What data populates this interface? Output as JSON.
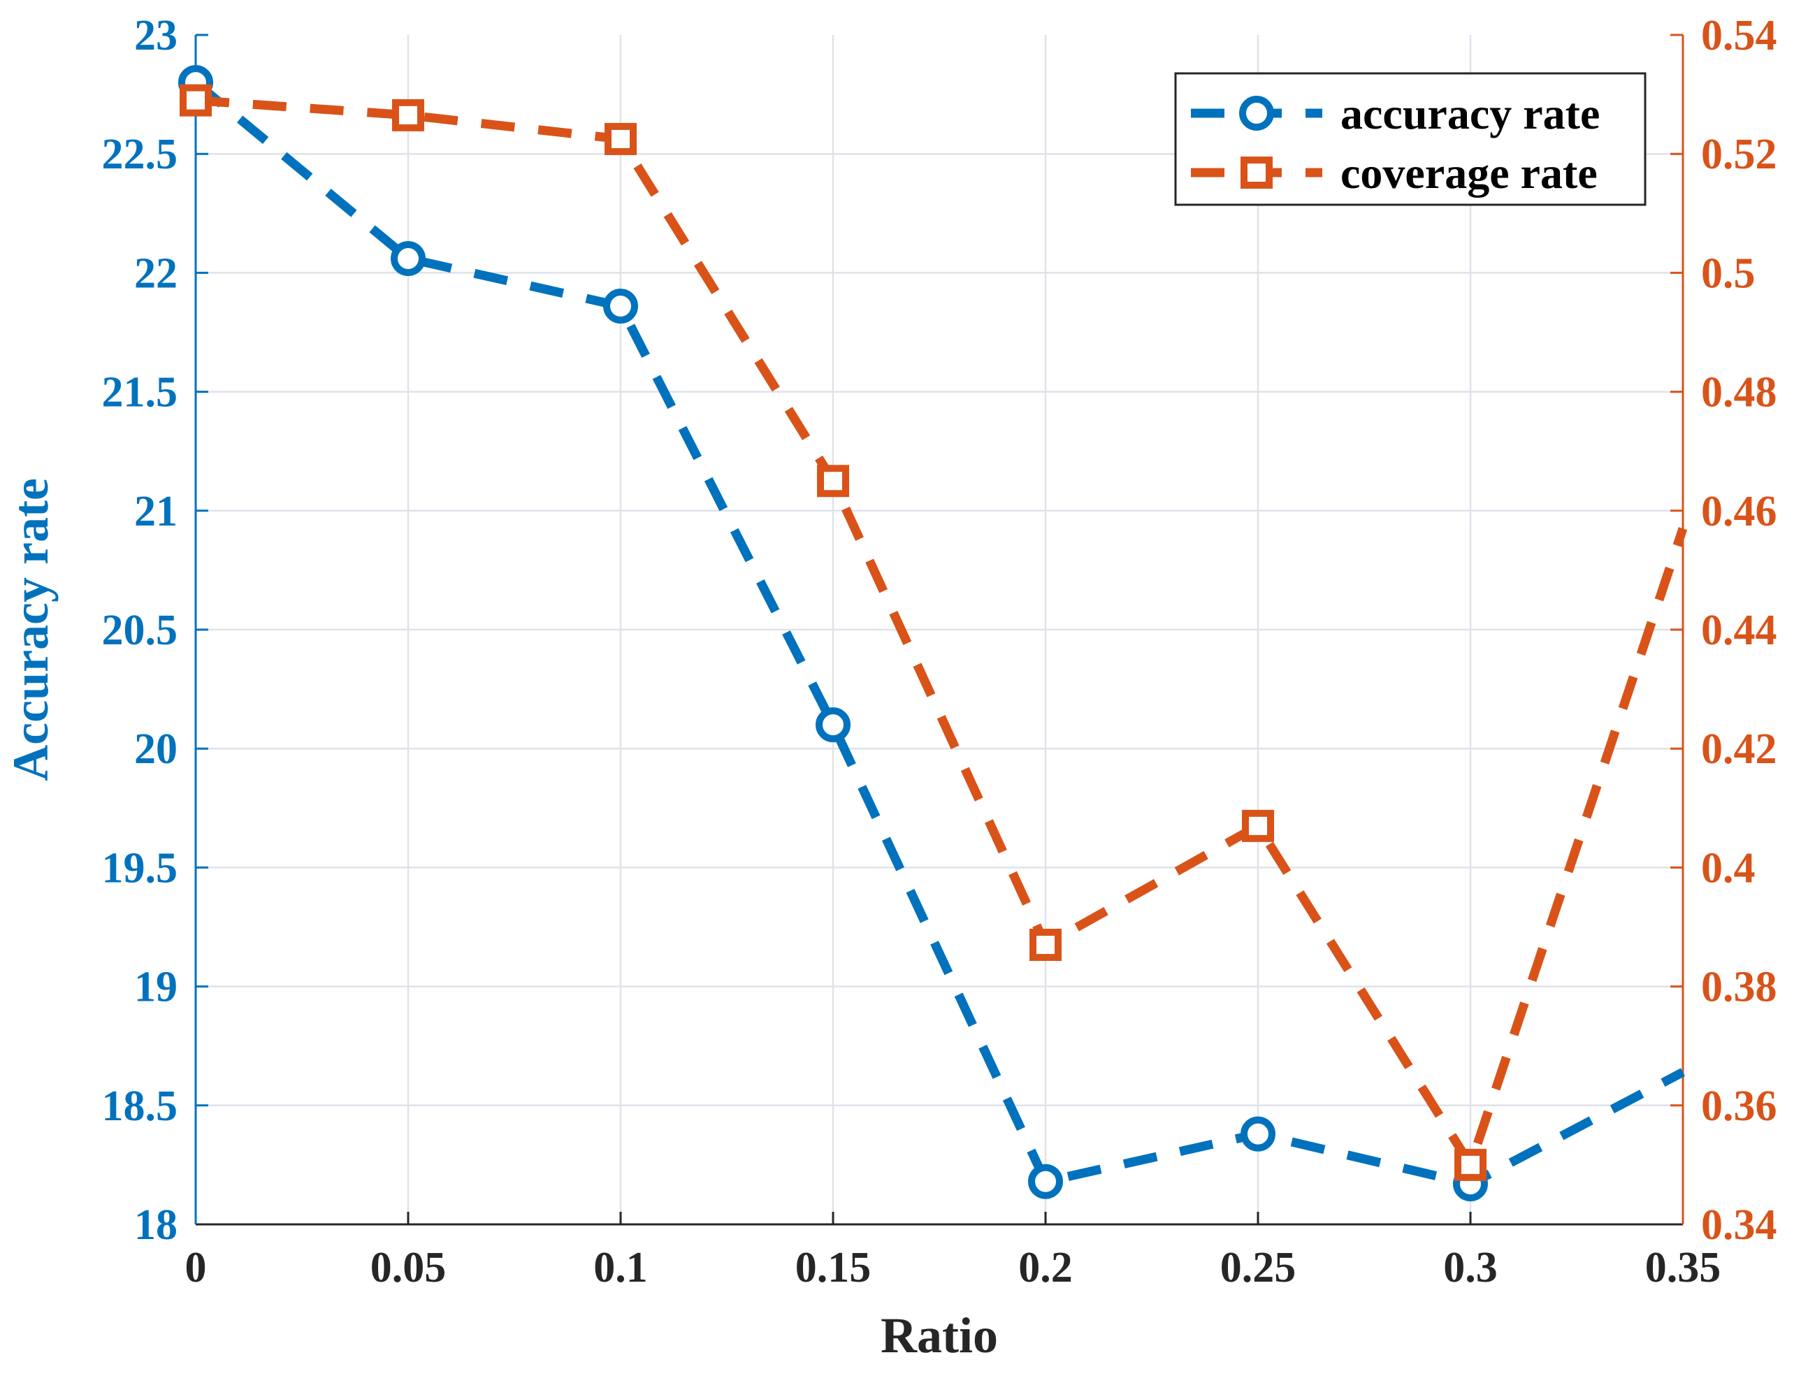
{
  "chart_data": {
    "type": "line",
    "title": "",
    "xlabel": "Ratio",
    "ylabel": "Accuracy rate",
    "y2label": "",
    "x": [
      0,
      0.05,
      0.1,
      0.15,
      0.2,
      0.25,
      0.3
    ],
    "xlim": [
      0,
      0.35
    ],
    "ylim": [
      18,
      23
    ],
    "y2lim": [
      0.34,
      0.54
    ],
    "grid": true,
    "legend_position": "top-right",
    "x_ticks": [
      "0",
      "0.05",
      "0.1",
      "0.15",
      "0.2",
      "0.25",
      "0.3",
      "0.35"
    ],
    "y_ticks": [
      "18",
      "18.5",
      "19",
      "19.5",
      "20",
      "20.5",
      "21",
      "21.5",
      "22",
      "22.5",
      "23"
    ],
    "y2_ticks": [
      "0.34",
      "0.36",
      "0.38",
      "0.4",
      "0.42",
      "0.44",
      "0.46",
      "0.48",
      "0.5",
      "0.52",
      "0.54"
    ],
    "series": [
      {
        "name": "accuracy rate",
        "axis": "left",
        "marker": "circle",
        "color": "#0072BD",
        "values": [
          22.8,
          22.06,
          21.86,
          20.1,
          18.18,
          18.38,
          18.17
        ],
        "tail": {
          "x": 0.35,
          "value": 18.64
        }
      },
      {
        "name": "coverage rate",
        "axis": "right",
        "marker": "square",
        "color": "#D95319",
        "values": [
          0.529,
          0.5265,
          0.5225,
          0.465,
          0.387,
          0.407,
          0.35
        ],
        "tail": {
          "x": 0.35,
          "value": 0.457
        }
      }
    ]
  }
}
